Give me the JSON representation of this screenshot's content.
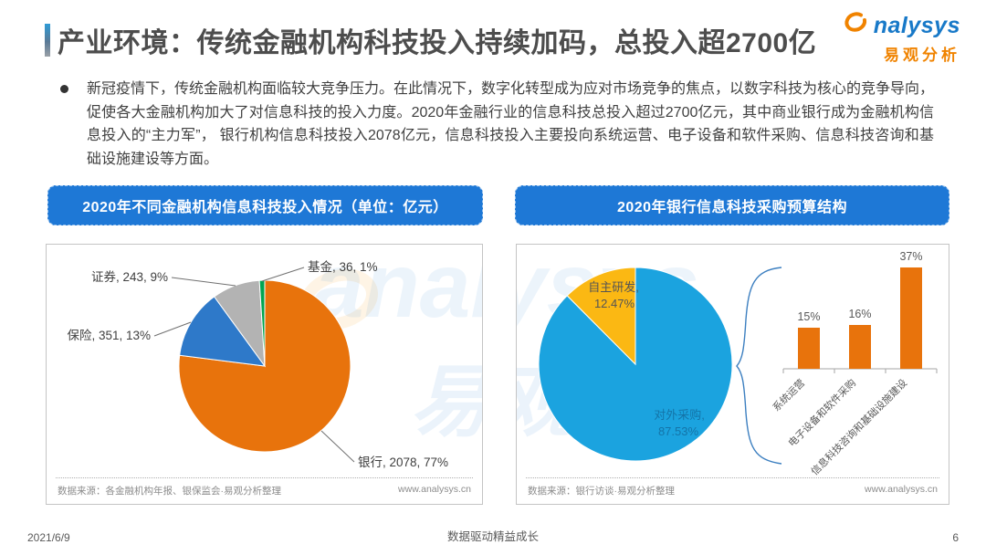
{
  "page": {
    "title": "产业环境：传统金融机构科技投入持续加码，总投入超2700亿",
    "logo": {
      "brand": "nalysys",
      "brand_cn": "易观分析"
    },
    "bullet_text": "新冠疫情下，传统金融机构面临较大竞争压力。在此情况下，数字化转型成为应对市场竞争的焦点，以数字科技为核心的竞争导向，促使各大金融机构加大了对信息科技的投入力度。2020年金融行业的信息科技总投入超过2700亿元，其中商业银行成为金融机构信息投入的“主力军”， 银行机构信息科技投入2078亿元，信息科技投入主要投向系统运营、电子设备和软件采购、信息科技咨询和基础设施建设等方面。",
    "footer": {
      "date": "2021/6/9",
      "slogan": "数据驱动精益成长",
      "page_number": "6"
    },
    "watermark": {
      "brand": "analysys",
      "cn": "易观"
    }
  },
  "left_panel": {
    "header": "2020年不同金融机构信息科技投入情况（单位：亿元）",
    "source": "数据来源：各金融机构年报、银保监会·易观分析整理",
    "site": "www.analysys.cn"
  },
  "right_panel": {
    "header": "2020年银行信息科技采购预算结构",
    "source": "数据来源：银行访谈·易观分析整理",
    "site": "www.analysys.cn"
  },
  "chart_data": [
    {
      "type": "pie",
      "title": "2020年不同金融机构信息科技投入情况（单位：亿元）",
      "unit": "亿元",
      "start_angle": "12-o-clock, clockwise",
      "slices": [
        {
          "label": "银行",
          "value": 2078,
          "pct": 77,
          "color": "#e8730c"
        },
        {
          "label": "保险",
          "value": 351,
          "pct": 13,
          "color": "#2e79c9"
        },
        {
          "label": "证券",
          "value": 243,
          "pct": 9,
          "color": "#b3b3b3"
        },
        {
          "label": "基金",
          "value": 36,
          "pct": 1,
          "color": "#00a550"
        }
      ],
      "label_format": "label, value, pct%"
    },
    {
      "type": "pie",
      "title": "2020年银行信息科技采购预算结构",
      "start_angle": "12-o-clock, clockwise",
      "slices": [
        {
          "label": "对外采购",
          "pct": 87.53,
          "color": "#1ba3df",
          "label_color": "#1474a8"
        },
        {
          "label": "自主研发",
          "pct": 12.47,
          "color": "#fbb813",
          "label_color": "#555555"
        }
      ],
      "label_format": "label, pct%"
    },
    {
      "type": "bar",
      "title": "2020年银行信息科技采购预算结构（对外采购细分）",
      "categories": [
        "系统运营",
        "电子设备和软件采购",
        "信息科技咨询和基础设施建设"
      ],
      "values": [
        15,
        16,
        37
      ],
      "unit": "%",
      "bar_color": "#e8730c",
      "ylim": [
        0,
        40
      ],
      "grid": false,
      "legend": "none"
    }
  ]
}
